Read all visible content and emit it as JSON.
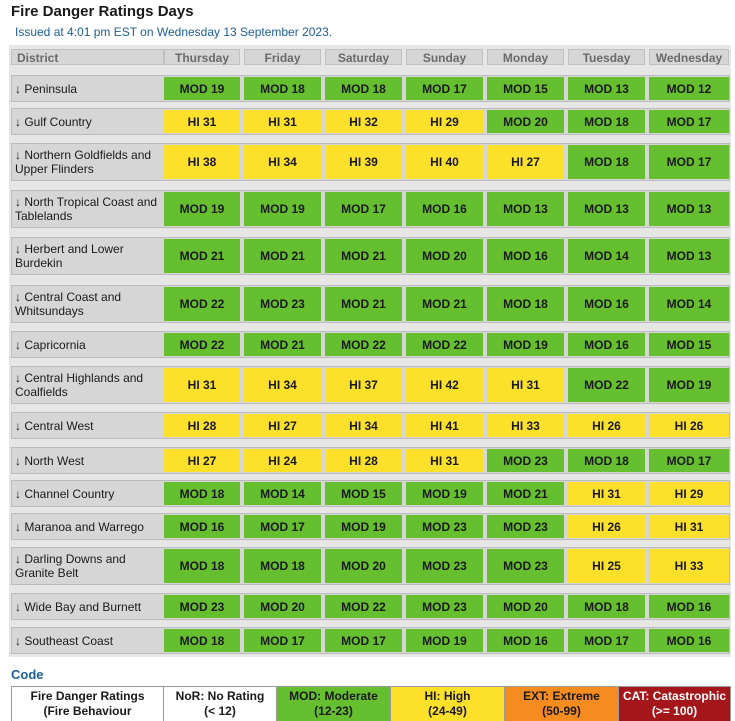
{
  "page": {
    "title": "Fire Danger Ratings Days",
    "issued": "Issued at 4:01 pm EST on Wednesday 13 September 2023."
  },
  "table": {
    "district_header": "District",
    "days": [
      "Thursday",
      "Friday",
      "Saturday",
      "Sunday",
      "Monday",
      "Tuesday",
      "Wednesday"
    ],
    "arrow": "↓",
    "rows": [
      {
        "name": "Peninsula",
        "lines": [
          "Peninsula"
        ],
        "ratings": [
          "MOD 19",
          "MOD 18",
          "MOD 18",
          "MOD 17",
          "MOD 15",
          "MOD 13",
          "MOD 12"
        ]
      },
      {
        "name": "Gulf Country",
        "lines": [
          "Gulf Country"
        ],
        "ratings": [
          "HI 31",
          "HI 31",
          "HI 32",
          "HI 29",
          "MOD 20",
          "MOD 18",
          "MOD 17"
        ]
      },
      {
        "name": "Northern Goldfields and Upper Flinders",
        "lines": [
          "Northern Goldfields and",
          "Upper Flinders"
        ],
        "ratings": [
          "HI 38",
          "HI 34",
          "HI 39",
          "HI 40",
          "HI 27",
          "MOD 18",
          "MOD 17"
        ]
      },
      {
        "name": "North Tropical Coast and Tablelands",
        "lines": [
          "North Tropical Coast and",
          "Tablelands"
        ],
        "ratings": [
          "MOD 19",
          "MOD 19",
          "MOD 17",
          "MOD 16",
          "MOD 13",
          "MOD 13",
          "MOD 13"
        ]
      },
      {
        "name": "Herbert and Lower Burdekin",
        "lines": [
          "Herbert and Lower",
          "Burdekin"
        ],
        "ratings": [
          "MOD 21",
          "MOD 21",
          "MOD 21",
          "MOD 20",
          "MOD 16",
          "MOD 14",
          "MOD 13"
        ]
      },
      {
        "name": "Central Coast and Whitsundays",
        "lines": [
          "Central Coast and",
          "Whitsundays"
        ],
        "ratings": [
          "MOD 22",
          "MOD 23",
          "MOD 21",
          "MOD 21",
          "MOD 18",
          "MOD 16",
          "MOD 14"
        ]
      },
      {
        "name": "Capricornia",
        "lines": [
          "Capricornia"
        ],
        "ratings": [
          "MOD 22",
          "MOD 21",
          "MOD 22",
          "MOD 22",
          "MOD 19",
          "MOD 16",
          "MOD 15"
        ]
      },
      {
        "name": "Central Highlands and Coalfields",
        "lines": [
          "Central Highlands and",
          "Coalfields"
        ],
        "ratings": [
          "HI 31",
          "HI 34",
          "HI 37",
          "HI 42",
          "HI 31",
          "MOD 22",
          "MOD 19"
        ]
      },
      {
        "name": "Central West",
        "lines": [
          "Central West"
        ],
        "ratings": [
          "HI 28",
          "HI 27",
          "HI 34",
          "HI 41",
          "HI 33",
          "HI 26",
          "HI 26"
        ]
      },
      {
        "name": "North West",
        "lines": [
          "North West"
        ],
        "ratings": [
          "HI 27",
          "HI 24",
          "HI 28",
          "HI 31",
          "MOD 23",
          "MOD 18",
          "MOD 17"
        ]
      },
      {
        "name": "Channel Country",
        "lines": [
          "Channel Country"
        ],
        "ratings": [
          "MOD 18",
          "MOD 14",
          "MOD 15",
          "MOD 19",
          "MOD 21",
          "HI 31",
          "HI 29"
        ]
      },
      {
        "name": "Maranoa and Warrego",
        "lines": [
          "Maranoa and Warrego"
        ],
        "ratings": [
          "MOD 16",
          "MOD 17",
          "MOD 19",
          "MOD 23",
          "MOD 23",
          "HI 26",
          "HI 31"
        ]
      },
      {
        "name": "Darling Downs and Granite Belt",
        "lines": [
          "Darling Downs and",
          "Granite Belt"
        ],
        "ratings": [
          "MOD 18",
          "MOD 18",
          "MOD 20",
          "MOD 23",
          "MOD 23",
          "HI 25",
          "HI 33"
        ]
      },
      {
        "name": "Wide Bay and Burnett",
        "lines": [
          "Wide Bay and Burnett"
        ],
        "ratings": [
          "MOD 23",
          "MOD 20",
          "MOD 22",
          "MOD 23",
          "MOD 20",
          "MOD 18",
          "MOD 16"
        ]
      },
      {
        "name": "Southeast Coast",
        "lines": [
          "Southeast Coast"
        ],
        "ratings": [
          "MOD 18",
          "MOD 17",
          "MOD 17",
          "MOD 19",
          "MOD 16",
          "MOD 17",
          "MOD 16"
        ]
      }
    ]
  },
  "code": {
    "title": "Code",
    "items": [
      {
        "line1": "Fire Danger Ratings",
        "line2": "(Fire Behaviour",
        "bg": "#ffffff",
        "fg": "#1a1a1a"
      },
      {
        "line1": "NoR: No Rating",
        "line2": "(< 12)",
        "bg": "#ffffff",
        "fg": "#1a1a1a"
      },
      {
        "line1": "MOD: Moderate",
        "line2": "(12-23)",
        "bg": "#66bf2e",
        "fg": "#1a1a1a"
      },
      {
        "line1": "HI: High",
        "line2": "(24-49)",
        "bg": "#fde02a",
        "fg": "#1a1a1a"
      },
      {
        "line1": "EXT: Extreme",
        "line2": "(50-99)",
        "bg": "#f68b1f",
        "fg": "#1a1a1a"
      },
      {
        "line1": "CAT: Catastrophic",
        "line2": "(>= 100)",
        "bg": "#a4161a",
        "fg": "#ffffff"
      }
    ]
  },
  "colors": {
    "moderate": "#66bf2e",
    "high": "#fde02a",
    "extreme": "#f68b1f",
    "catastrophic": "#a4161a"
  }
}
